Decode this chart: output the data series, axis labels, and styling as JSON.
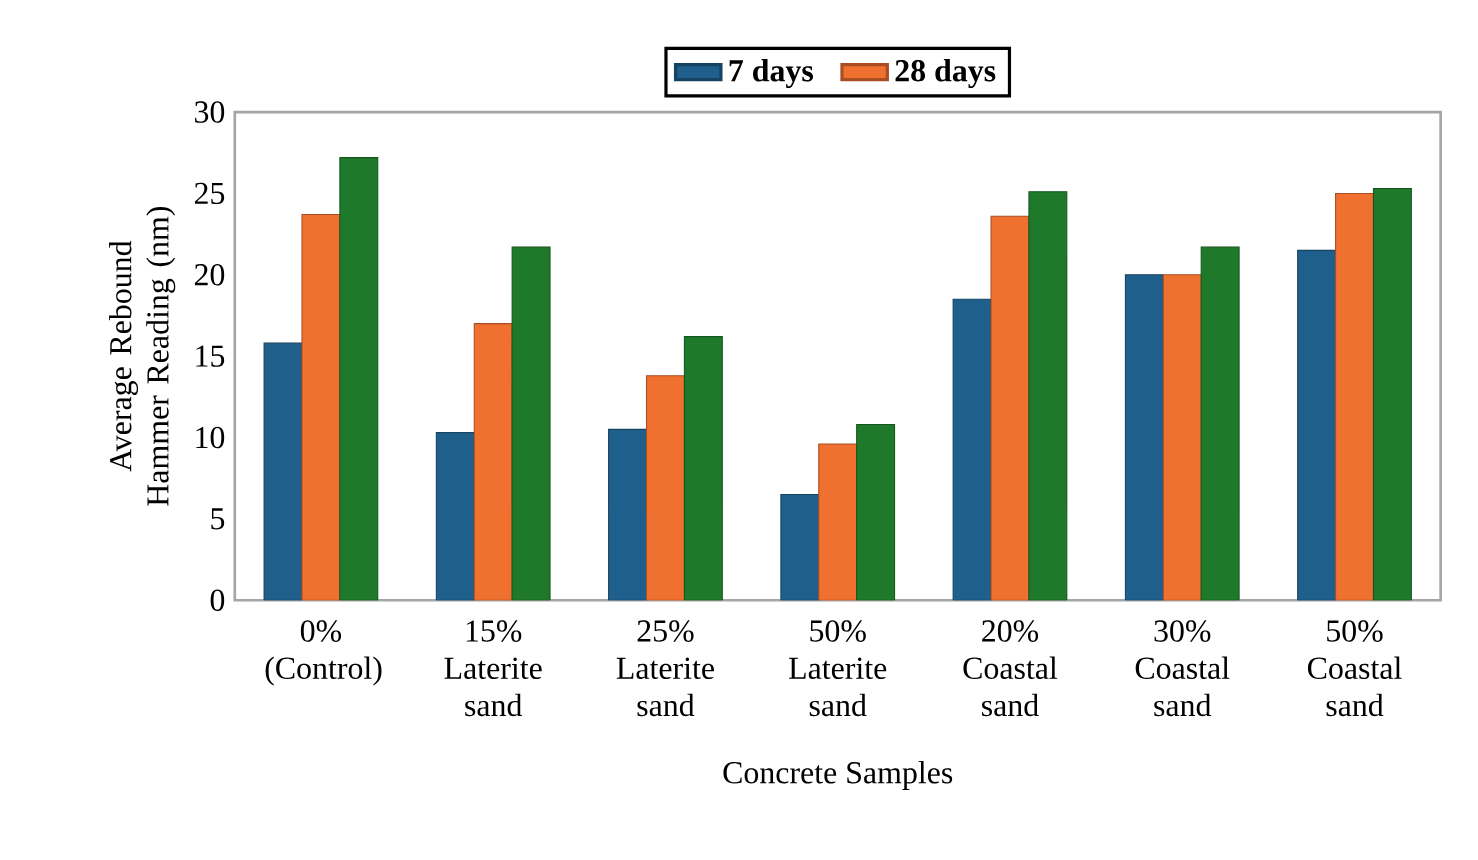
{
  "chart_data": {
    "type": "bar",
    "xlabel": "Concrete Samples",
    "ylabel": "Average Rebound Hammer Reading (nm)",
    "categories": [
      "0% (Control)",
      "15% Laterite sand",
      "25% Laterite sand",
      "50% Laterite sand",
      "20% Coastal sand",
      "30% Coastal sand",
      "50% Coastal sand"
    ],
    "series": [
      {
        "name": "7 days",
        "color": "#1f5f8b",
        "values": [
          15.8,
          10.3,
          10.5,
          6.5,
          18.5,
          20,
          21.5
        ]
      },
      {
        "name": "28 days",
        "color": "#f07030",
        "values": [
          23.7,
          17,
          13.8,
          9.6,
          23.6,
          20,
          25
        ]
      },
      {
        "color": "#1e7a2a",
        "values": [
          27.2,
          21.7,
          16.2,
          10.8,
          25.1,
          21.7,
          25.3
        ]
      }
    ],
    "ylim": [
      0,
      30
    ],
    "yticks": [
      0,
      5,
      10,
      15,
      20,
      25,
      30
    ],
    "grid": false,
    "legend": "top"
  }
}
